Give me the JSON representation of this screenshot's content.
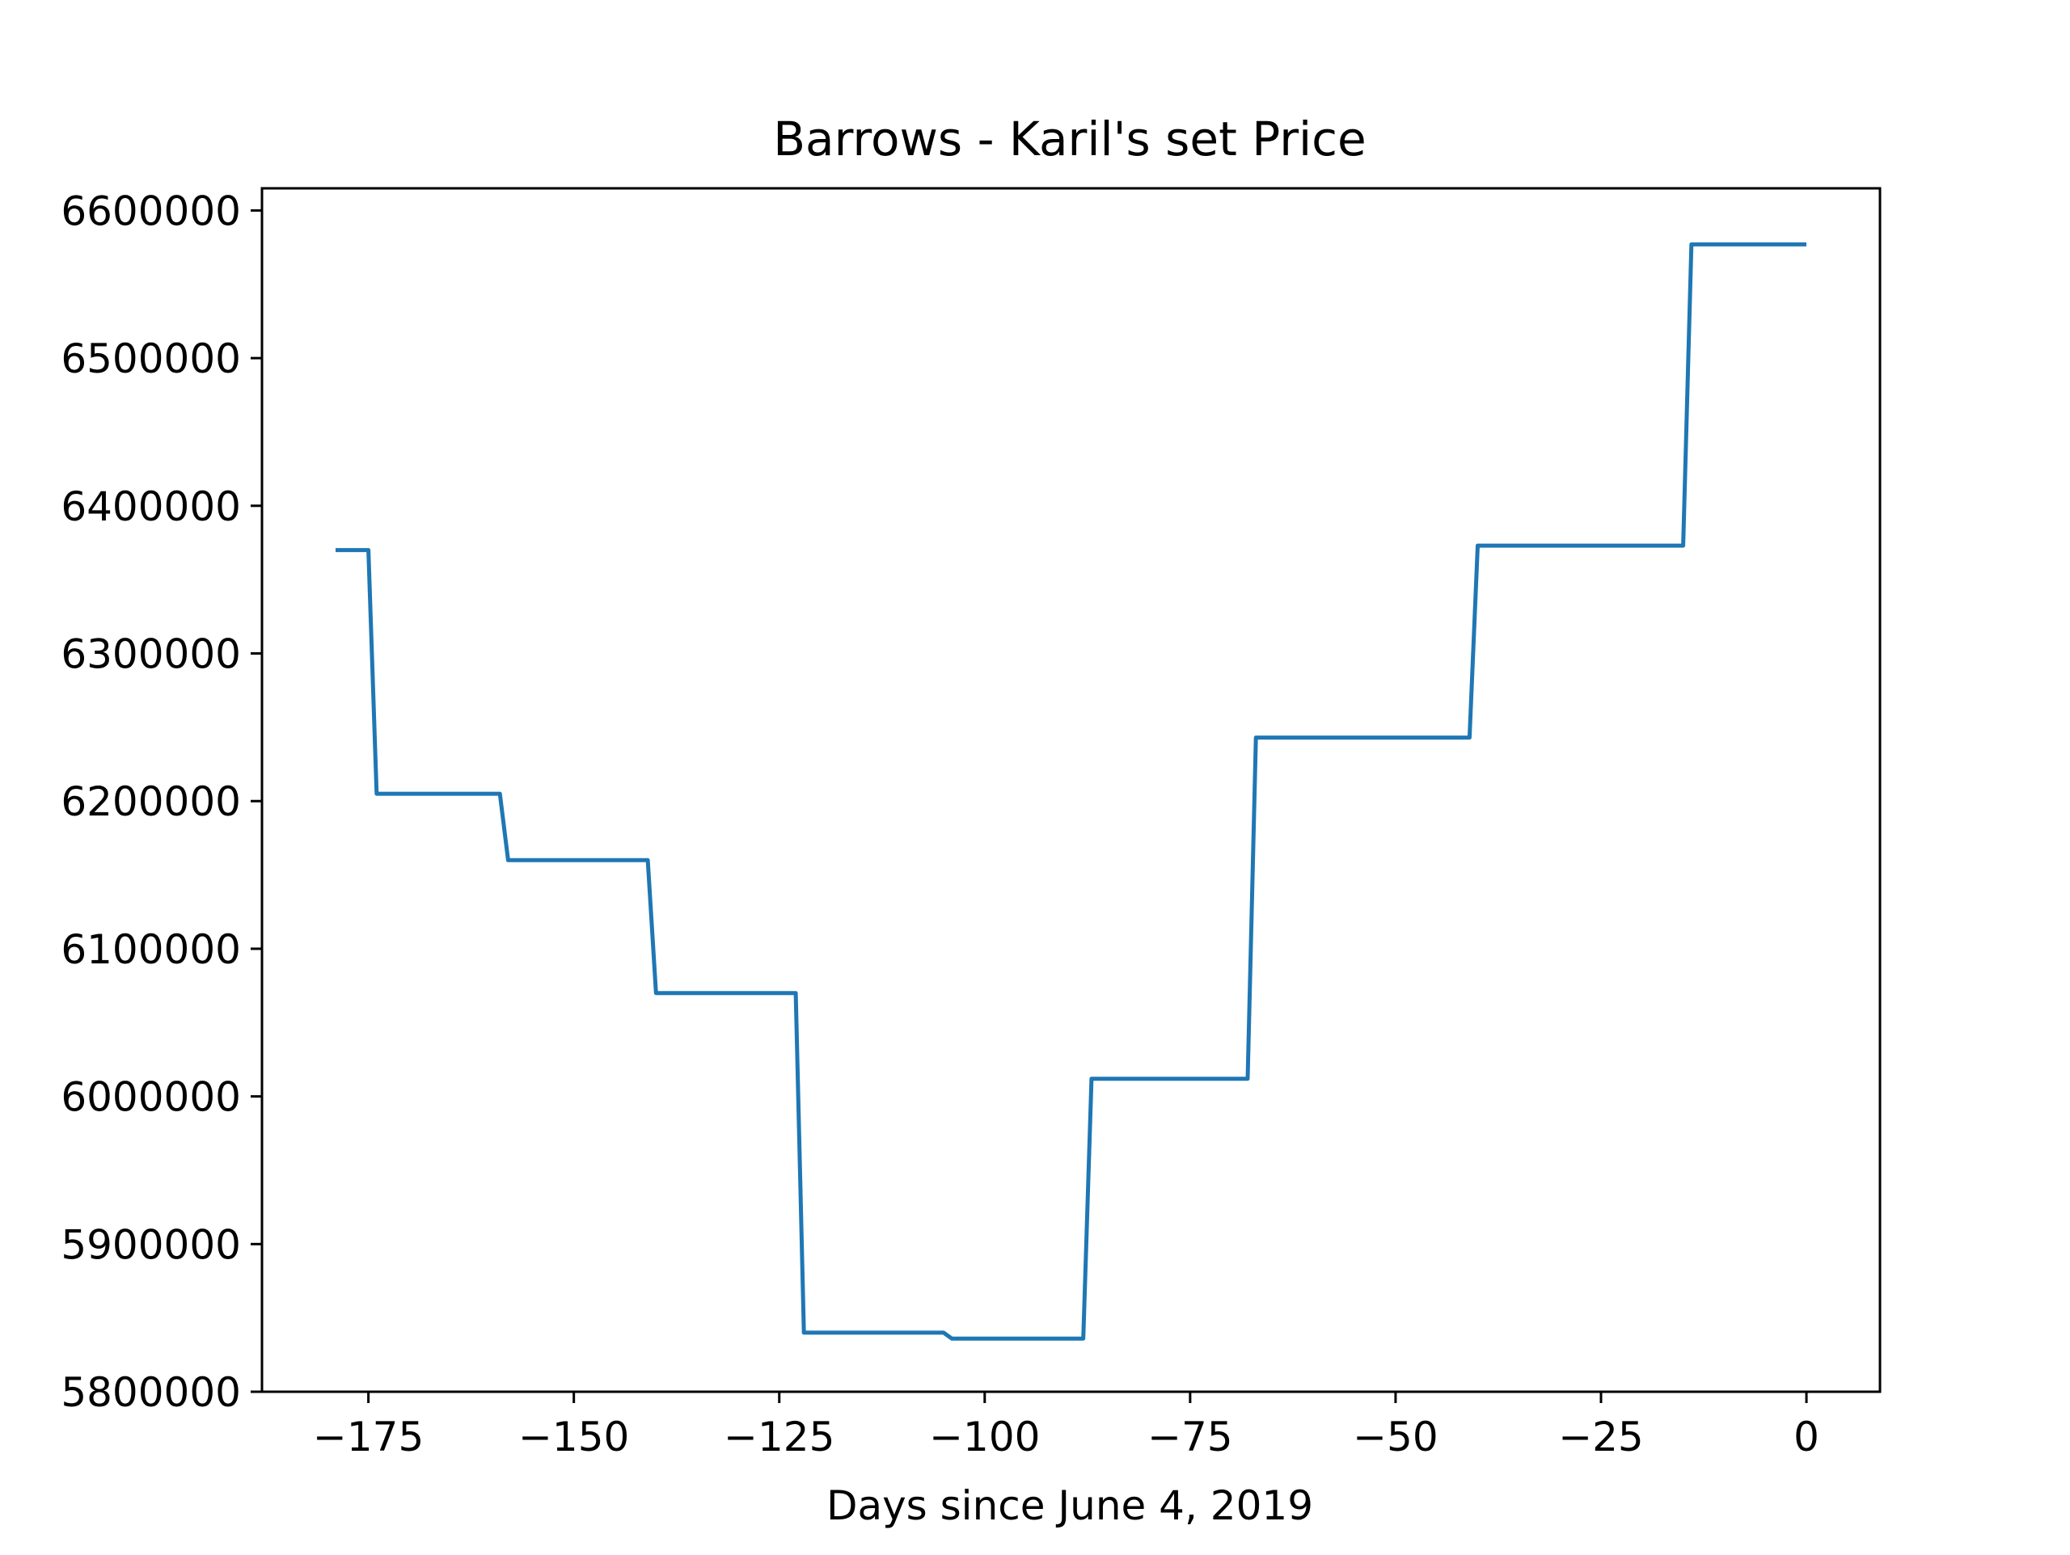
{
  "chart_data": {
    "type": "line",
    "title": "Barrows - Karil's set Price",
    "xlabel": "Days since June 4, 2019",
    "ylabel": "",
    "xlim": [
      -187.95,
      8.95
    ],
    "ylim": [
      5800000,
      6615000
    ],
    "xticks": [
      -175,
      -150,
      -125,
      -100,
      -75,
      -50,
      -25,
      0
    ],
    "xtick_labels": [
      "−175",
      "−150",
      "−125",
      "−100",
      "−75",
      "−50",
      "−25",
      "0"
    ],
    "yticks": [
      5800000,
      5900000,
      6000000,
      6100000,
      6200000,
      6300000,
      6400000,
      6500000,
      6600000
    ],
    "ytick_labels": [
      "5800000",
      "5900000",
      "6000000",
      "6100000",
      "6200000",
      "6300000",
      "6400000",
      "6500000",
      "6600000"
    ],
    "grid": false,
    "legend": "none",
    "series": [
      {
        "color": "#1f77b4",
        "x": [
          -179,
          -175,
          -174,
          -159,
          -158,
          -141,
          -140,
          -123,
          -122,
          -105,
          -104,
          -88,
          -87,
          -68,
          -67,
          -41,
          -40,
          -15,
          -14,
          0
        ],
        "y": [
          6370000,
          6370000,
          6205000,
          6205000,
          6160000,
          6160000,
          6070000,
          6070000,
          5840000,
          5840000,
          5836000,
          5836000,
          6012000,
          6012000,
          6243000,
          6243000,
          6373000,
          6373000,
          6577000,
          6577000
        ]
      }
    ]
  }
}
